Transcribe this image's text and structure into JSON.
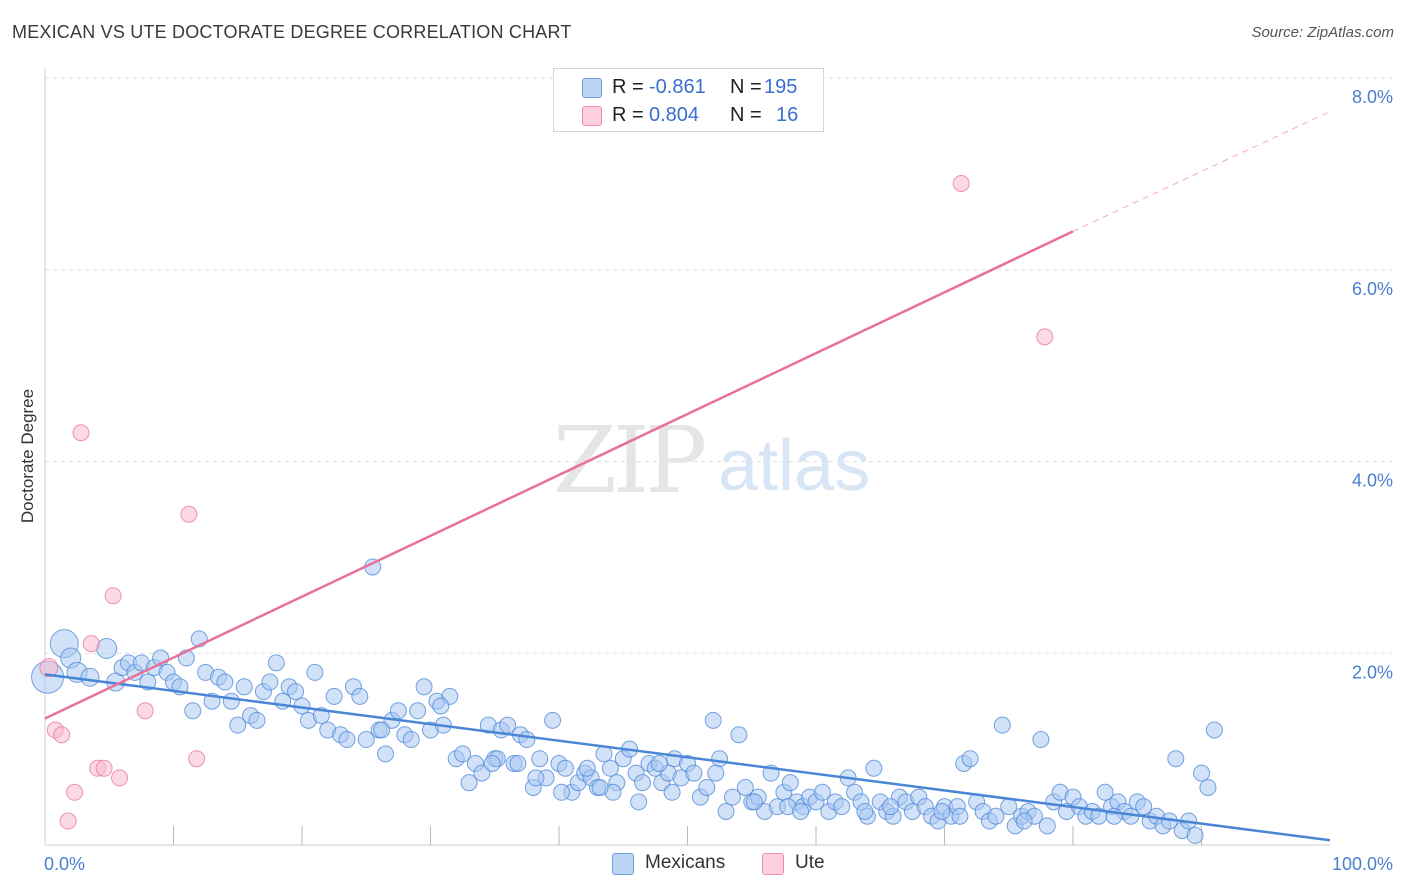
{
  "header": {
    "title": "MEXICAN VS UTE DOCTORATE DEGREE CORRELATION CHART",
    "source": "Source: ZipAtlas.com"
  },
  "watermark": {
    "zip": "ZIP",
    "atlas": "atlas"
  },
  "legend_top": {
    "rows": [
      {
        "r_label": "R =",
        "r_value": "-0.861",
        "n_label": "N =",
        "n_value": "195",
        "color": "#a9c8f2"
      },
      {
        "r_label": "R =",
        "r_value": "0.804",
        "n_label": "N =",
        "n_value": "16",
        "color": "#f8bcd0"
      }
    ]
  },
  "legend_bottom": [
    {
      "label": "Mexicans",
      "color": "#a9c8f2"
    },
    {
      "label": "Ute",
      "color": "#f8bcd0"
    }
  ],
  "chart_data": {
    "type": "scatter",
    "ylabel": "Doctorate Degree",
    "xlim": [
      0,
      100
    ],
    "ylim": [
      0,
      8.0
    ],
    "x_tick_labels": [
      "0.0%",
      "100.0%"
    ],
    "y_ticks": [
      2.0,
      4.0,
      6.0,
      8.0
    ],
    "y_tick_labels": [
      "2.0%",
      "4.0%",
      "6.0%",
      "8.0%"
    ],
    "grid": true,
    "series": [
      {
        "name": "Mexicans",
        "color": "#4a86d6",
        "fill": "#a9c8f2",
        "trend": {
          "x0": 0,
          "y0": 1.78,
          "x1": 100,
          "y1": 0.05
        },
        "points": [
          [
            0.2,
            1.75,
            16
          ],
          [
            1.5,
            2.1,
            14
          ],
          [
            2.0,
            1.95,
            10
          ],
          [
            2.5,
            1.8,
            10
          ],
          [
            3.5,
            1.75,
            9
          ],
          [
            4.8,
            2.05,
            10
          ],
          [
            5.5,
            1.7,
            9
          ],
          [
            6.0,
            1.85,
            8
          ],
          [
            6.5,
            1.9,
            8
          ],
          [
            7.0,
            1.8,
            8
          ],
          [
            7.5,
            1.9,
            8
          ],
          [
            8.0,
            1.7,
            8
          ],
          [
            8.5,
            1.85,
            8
          ],
          [
            9.0,
            1.95,
            8
          ],
          [
            9.5,
            1.8,
            8
          ],
          [
            10.0,
            1.7,
            8
          ],
          [
            10.5,
            1.65,
            8
          ],
          [
            11.0,
            1.95,
            8
          ],
          [
            11.5,
            1.4,
            8
          ],
          [
            12.0,
            2.15,
            8
          ],
          [
            12.5,
            1.8,
            8
          ],
          [
            13.0,
            1.5,
            8
          ],
          [
            13.5,
            1.75,
            8
          ],
          [
            14.0,
            1.7,
            8
          ],
          [
            14.5,
            1.5,
            8
          ],
          [
            15.0,
            1.25,
            8
          ],
          [
            15.5,
            1.65,
            8
          ],
          [
            16.0,
            1.35,
            8
          ],
          [
            16.5,
            1.3,
            8
          ],
          [
            17.0,
            1.6,
            8
          ],
          [
            17.5,
            1.7,
            8
          ],
          [
            18.0,
            1.9,
            8
          ],
          [
            18.5,
            1.5,
            8
          ],
          [
            19.0,
            1.65,
            8
          ],
          [
            19.5,
            1.6,
            8
          ],
          [
            20.0,
            1.45,
            8
          ],
          [
            20.5,
            1.3,
            8
          ],
          [
            21.0,
            1.8,
            8
          ],
          [
            21.5,
            1.35,
            8
          ],
          [
            22.0,
            1.2,
            8
          ],
          [
            22.5,
            1.55,
            8
          ],
          [
            23.0,
            1.15,
            8
          ],
          [
            23.5,
            1.1,
            8
          ],
          [
            24.0,
            1.65,
            8
          ],
          [
            24.5,
            1.55,
            8
          ],
          [
            25.0,
            1.1,
            8
          ],
          [
            25.5,
            2.9,
            8
          ],
          [
            26.0,
            1.2,
            8
          ],
          [
            26.5,
            0.95,
            8
          ],
          [
            27.0,
            1.3,
            8
          ],
          [
            27.5,
            1.4,
            8
          ],
          [
            28.0,
            1.15,
            8
          ],
          [
            28.5,
            1.1,
            8
          ],
          [
            29.0,
            1.4,
            8
          ],
          [
            29.5,
            1.65,
            8
          ],
          [
            30.0,
            1.2,
            8
          ],
          [
            30.5,
            1.5,
            8
          ],
          [
            31.0,
            1.25,
            8
          ],
          [
            31.5,
            1.55,
            8
          ],
          [
            32.0,
            0.9,
            8
          ],
          [
            32.5,
            0.95,
            8
          ],
          [
            33.5,
            0.85,
            8
          ],
          [
            34.0,
            0.75,
            8
          ],
          [
            34.5,
            1.25,
            8
          ],
          [
            35.0,
            0.9,
            8
          ],
          [
            35.5,
            1.2,
            8
          ],
          [
            36.0,
            1.25,
            8
          ],
          [
            36.5,
            0.85,
            8
          ],
          [
            37.0,
            1.15,
            8
          ],
          [
            37.5,
            1.1,
            8
          ],
          [
            38.0,
            0.6,
            8
          ],
          [
            38.5,
            0.9,
            8
          ],
          [
            39.0,
            0.7,
            8
          ],
          [
            39.5,
            1.3,
            8
          ],
          [
            40.0,
            0.85,
            8
          ],
          [
            40.5,
            0.8,
            8
          ],
          [
            41.0,
            0.55,
            8
          ],
          [
            41.5,
            0.65,
            8
          ],
          [
            42.0,
            0.75,
            8
          ],
          [
            42.5,
            0.7,
            8
          ],
          [
            43.0,
            0.6,
            8
          ],
          [
            43.5,
            0.95,
            8
          ],
          [
            44.0,
            0.8,
            8
          ],
          [
            44.5,
            0.65,
            8
          ],
          [
            45.0,
            0.9,
            8
          ],
          [
            45.5,
            1.0,
            8
          ],
          [
            46.0,
            0.75,
            8
          ],
          [
            46.5,
            0.65,
            8
          ],
          [
            47.0,
            0.85,
            8
          ],
          [
            47.5,
            0.8,
            8
          ],
          [
            48.0,
            0.65,
            8
          ],
          [
            48.5,
            0.75,
            8
          ],
          [
            49.0,
            0.9,
            8
          ],
          [
            49.5,
            0.7,
            8
          ],
          [
            50.0,
            0.85,
            8
          ],
          [
            50.5,
            0.75,
            8
          ],
          [
            51.0,
            0.5,
            8
          ],
          [
            51.5,
            0.6,
            8
          ],
          [
            52.0,
            1.3,
            8
          ],
          [
            52.5,
            0.9,
            8
          ],
          [
            53.0,
            0.35,
            8
          ],
          [
            53.5,
            0.5,
            8
          ],
          [
            54.0,
            1.15,
            8
          ],
          [
            54.5,
            0.6,
            8
          ],
          [
            55.0,
            0.45,
            8
          ],
          [
            55.5,
            0.5,
            8
          ],
          [
            56.0,
            0.35,
            8
          ],
          [
            56.5,
            0.75,
            8
          ],
          [
            57.0,
            0.4,
            8
          ],
          [
            57.5,
            0.55,
            8
          ],
          [
            58.0,
            0.65,
            8
          ],
          [
            58.5,
            0.45,
            8
          ],
          [
            59.0,
            0.4,
            8
          ],
          [
            59.5,
            0.5,
            8
          ],
          [
            60.0,
            0.45,
            8
          ],
          [
            60.5,
            0.55,
            8
          ],
          [
            61.0,
            0.35,
            8
          ],
          [
            61.5,
            0.45,
            8
          ],
          [
            62.0,
            0.4,
            8
          ],
          [
            62.5,
            0.7,
            8
          ],
          [
            63.0,
            0.55,
            8
          ],
          [
            63.5,
            0.45,
            8
          ],
          [
            64.0,
            0.3,
            8
          ],
          [
            64.5,
            0.8,
            8
          ],
          [
            65.0,
            0.45,
            8
          ],
          [
            65.5,
            0.35,
            8
          ],
          [
            66.0,
            0.3,
            8
          ],
          [
            66.5,
            0.5,
            8
          ],
          [
            67.0,
            0.45,
            8
          ],
          [
            67.5,
            0.35,
            8
          ],
          [
            68.0,
            0.5,
            8
          ],
          [
            68.5,
            0.4,
            8
          ],
          [
            69.0,
            0.3,
            8
          ],
          [
            69.5,
            0.25,
            8
          ],
          [
            70.0,
            0.4,
            8
          ],
          [
            70.5,
            0.3,
            8
          ],
          [
            71.0,
            0.4,
            8
          ],
          [
            71.5,
            0.85,
            8
          ],
          [
            72.0,
            0.9,
            8
          ],
          [
            72.5,
            0.45,
            8
          ],
          [
            73.0,
            0.35,
            8
          ],
          [
            73.5,
            0.25,
            8
          ],
          [
            74.0,
            0.3,
            8
          ],
          [
            74.5,
            1.25,
            8
          ],
          [
            75.0,
            0.4,
            8
          ],
          [
            75.5,
            0.2,
            8
          ],
          [
            76.0,
            0.3,
            8
          ],
          [
            76.5,
            0.35,
            8
          ],
          [
            77.0,
            0.3,
            8
          ],
          [
            77.5,
            1.1,
            8
          ],
          [
            78.0,
            0.2,
            8
          ],
          [
            78.5,
            0.45,
            8
          ],
          [
            79.0,
            0.55,
            8
          ],
          [
            79.5,
            0.35,
            8
          ],
          [
            80.0,
            0.5,
            8
          ],
          [
            80.5,
            0.4,
            8
          ],
          [
            81.0,
            0.3,
            8
          ],
          [
            81.5,
            0.35,
            8
          ],
          [
            82.0,
            0.3,
            8
          ],
          [
            82.5,
            0.55,
            8
          ],
          [
            83.0,
            0.4,
            8
          ],
          [
            83.5,
            0.45,
            8
          ],
          [
            84.0,
            0.35,
            8
          ],
          [
            84.5,
            0.3,
            8
          ],
          [
            85.0,
            0.45,
            8
          ],
          [
            85.5,
            0.4,
            8
          ],
          [
            86.0,
            0.25,
            8
          ],
          [
            86.5,
            0.3,
            8
          ],
          [
            87.0,
            0.2,
            8
          ],
          [
            87.5,
            0.25,
            8
          ],
          [
            88.0,
            0.9,
            8
          ],
          [
            88.5,
            0.15,
            8
          ],
          [
            89.0,
            0.25,
            8
          ],
          [
            89.5,
            0.1,
            8
          ],
          [
            90.0,
            0.75,
            8
          ],
          [
            90.5,
            0.6,
            8
          ],
          [
            91.0,
            1.2,
            8
          ],
          [
            33.0,
            0.65,
            8
          ],
          [
            44.2,
            0.55,
            8
          ],
          [
            57.8,
            0.4,
            8
          ],
          [
            63.8,
            0.35,
            8
          ],
          [
            47.8,
            0.85,
            8
          ],
          [
            36.8,
            0.85,
            8
          ],
          [
            26.2,
            1.2,
            8
          ],
          [
            69.8,
            0.35,
            8
          ],
          [
            52.2,
            0.75,
            8
          ],
          [
            46.2,
            0.45,
            8
          ],
          [
            43.2,
            0.6,
            8
          ],
          [
            40.2,
            0.55,
            8
          ],
          [
            38.2,
            0.7,
            8
          ],
          [
            35.2,
            0.9,
            8
          ],
          [
            30.8,
            1.45,
            8
          ],
          [
            34.8,
            0.85,
            8
          ],
          [
            42.2,
            0.8,
            8
          ],
          [
            48.8,
            0.55,
            8
          ],
          [
            55.2,
            0.45,
            8
          ],
          [
            58.8,
            0.35,
            8
          ],
          [
            65.8,
            0.4,
            8
          ],
          [
            71.2,
            0.3,
            8
          ],
          [
            76.2,
            0.25,
            8
          ],
          [
            83.2,
            0.3,
            8
          ]
        ]
      },
      {
        "name": "Ute",
        "color": "#e8709a",
        "fill": "#f8bcd0",
        "trend": {
          "x0": 0,
          "y0": 1.32,
          "x1": 80,
          "y1": 6.4
        },
        "trend_dashed": {
          "x0": 80,
          "y0": 6.4,
          "x1": 100,
          "y1": 7.65
        },
        "points": [
          [
            0.3,
            1.85,
            9
          ],
          [
            0.8,
            1.2,
            8
          ],
          [
            1.3,
            1.15,
            8
          ],
          [
            2.3,
            0.55,
            8
          ],
          [
            2.8,
            4.3,
            8
          ],
          [
            3.6,
            2.1,
            8
          ],
          [
            4.1,
            0.8,
            8
          ],
          [
            4.6,
            0.8,
            8
          ],
          [
            5.3,
            2.6,
            8
          ],
          [
            5.8,
            0.7,
            8
          ],
          [
            7.8,
            1.4,
            8
          ],
          [
            11.2,
            3.45,
            8
          ],
          [
            11.8,
            0.9,
            8
          ],
          [
            71.3,
            6.9,
            8
          ],
          [
            77.8,
            5.3,
            8
          ],
          [
            1.8,
            0.25,
            8
          ]
        ]
      }
    ]
  }
}
